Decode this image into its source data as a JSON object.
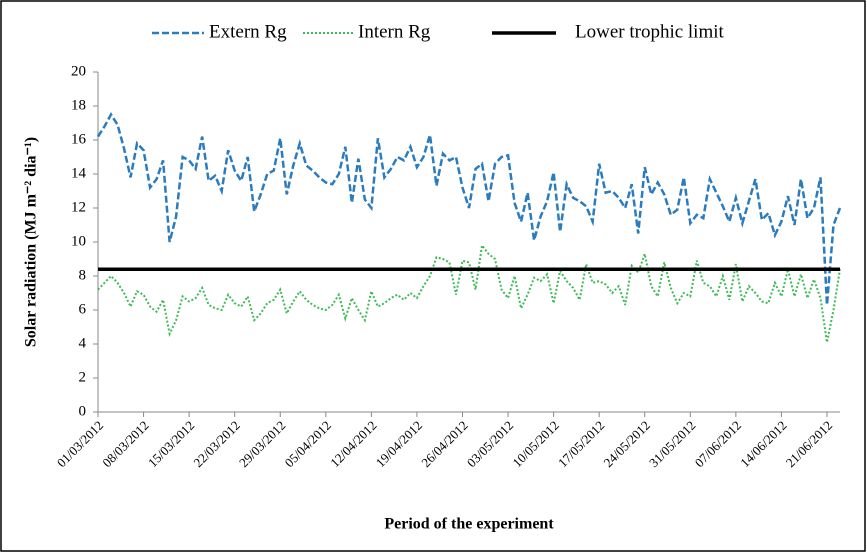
{
  "chart_data": {
    "type": "line",
    "x_label": "Period of the experiment",
    "y_label": "Solar radiation (MJ m⁻² dia⁻¹)",
    "categories": [
      "01/03/2012",
      null,
      null,
      null,
      null,
      null,
      null,
      "08/03/2012",
      null,
      null,
      null,
      null,
      null,
      null,
      "15/03/2012",
      null,
      null,
      null,
      null,
      null,
      null,
      "22/03/2012",
      null,
      null,
      null,
      null,
      null,
      null,
      "29/03/2012",
      null,
      null,
      null,
      null,
      null,
      null,
      "05/04/2012",
      null,
      null,
      null,
      null,
      null,
      null,
      "12/04/2012",
      null,
      null,
      null,
      null,
      null,
      null,
      "19/04/2012",
      null,
      null,
      null,
      null,
      null,
      null,
      "26/04/2012",
      null,
      null,
      null,
      null,
      null,
      null,
      "03/05/2012",
      null,
      null,
      null,
      null,
      null,
      null,
      "10/05/2012",
      null,
      null,
      null,
      null,
      null,
      null,
      "17/05/2012",
      null,
      null,
      null,
      null,
      null,
      null,
      "24/05/2012",
      null,
      null,
      null,
      null,
      null,
      null,
      "31/05/2012",
      null,
      null,
      null,
      null,
      null,
      null,
      "07/06/2012",
      null,
      null,
      null,
      null,
      null,
      null,
      "14/06/2012",
      null,
      null,
      null,
      null,
      null,
      null,
      "21/06/2012",
      null,
      null
    ],
    "series": [
      {
        "name": "Extern Rg",
        "color": "#2b7bbf",
        "style": "dashed",
        "values": [
          16.2,
          16.8,
          17.5,
          16.9,
          15.5,
          13.8,
          15.8,
          15.4,
          13.2,
          13.7,
          14.8,
          10.0,
          11.5,
          15.0,
          14.8,
          14.3,
          16.2,
          13.6,
          13.9,
          13.0,
          15.4,
          14.2,
          13.6,
          15.0,
          11.8,
          12.8,
          14.0,
          14.2,
          16.1,
          12.8,
          14.5,
          15.8,
          14.5,
          14.2,
          13.8,
          13.5,
          13.4,
          14.0,
          15.6,
          12.3,
          14.9,
          12.5,
          12.0,
          16.1,
          13.8,
          14.3,
          15.0,
          14.8,
          15.6,
          14.4,
          15.0,
          16.3,
          13.3,
          15.2,
          14.8,
          15.0,
          13.2,
          12.0,
          14.3,
          14.6,
          12.4,
          14.6,
          15.0,
          15.1,
          12.3,
          11.2,
          12.9,
          10.1,
          11.5,
          12.4,
          14.1,
          10.6,
          13.4,
          12.6,
          12.4,
          12.1,
          11.2,
          14.6,
          12.9,
          13.0,
          12.6,
          12.0,
          13.4,
          10.5,
          14.4,
          12.8,
          13.5,
          12.8,
          11.6,
          11.9,
          13.8,
          11.1,
          11.6,
          11.4,
          13.7,
          12.9,
          12.1,
          11.2,
          12.6,
          11.1,
          12.4,
          13.7,
          11.3,
          11.7,
          10.4,
          11.2,
          12.7,
          11.0,
          13.7,
          11.4,
          12.0,
          13.8,
          6.3,
          11.0,
          12.0
        ]
      },
      {
        "name": "Intern Rg",
        "color": "#3dbb55",
        "style": "dotted",
        "values": [
          7.2,
          7.6,
          8.0,
          7.6,
          7.0,
          6.2,
          7.1,
          6.9,
          6.2,
          5.9,
          6.6,
          4.6,
          5.4,
          6.8,
          6.5,
          6.7,
          7.3,
          6.3,
          6.1,
          6.0,
          6.9,
          6.4,
          6.2,
          6.8,
          5.4,
          5.8,
          6.4,
          6.6,
          7.2,
          5.8,
          6.5,
          7.1,
          6.6,
          6.3,
          6.1,
          6.0,
          6.3,
          6.9,
          5.5,
          6.7,
          6.0,
          5.4,
          7.1,
          6.2,
          6.4,
          6.7,
          6.9,
          6.6,
          7.0,
          6.7,
          7.4,
          8.0,
          9.1,
          9.0,
          8.8,
          6.9,
          8.9,
          8.8,
          7.2,
          9.8,
          9.3,
          9.0,
          7.2,
          6.7,
          8.0,
          6.1,
          6.9,
          7.9,
          7.7,
          8.1,
          6.4,
          8.3,
          7.7,
          7.3,
          6.6,
          8.7,
          7.6,
          7.7,
          7.5,
          7.0,
          7.4,
          6.3,
          8.6,
          8.2,
          9.3,
          7.4,
          6.8,
          8.8,
          7.3,
          6.4,
          7.0,
          6.8,
          8.9,
          7.6,
          7.4,
          6.8,
          8.0,
          6.6,
          8.7,
          6.5,
          7.4,
          7.0,
          6.5,
          6.4,
          7.6,
          6.8,
          8.4,
          6.8,
          8.1,
          6.7,
          7.8,
          6.7,
          4.1,
          6.0,
          8.4
        ]
      },
      {
        "name": "Lower trophic limit",
        "color": "#000000",
        "style": "solid",
        "values": [
          8.4,
          8.4,
          8.4,
          8.4,
          8.4,
          8.4,
          8.4,
          8.4,
          8.4,
          8.4,
          8.4,
          8.4,
          8.4,
          8.4,
          8.4,
          8.4,
          8.4,
          8.4,
          8.4,
          8.4,
          8.4,
          8.4,
          8.4,
          8.4,
          8.4,
          8.4,
          8.4,
          8.4,
          8.4,
          8.4,
          8.4,
          8.4,
          8.4,
          8.4,
          8.4,
          8.4,
          8.4,
          8.4,
          8.4,
          8.4,
          8.4,
          8.4,
          8.4,
          8.4,
          8.4,
          8.4,
          8.4,
          8.4,
          8.4,
          8.4,
          8.4,
          8.4,
          8.4,
          8.4,
          8.4,
          8.4,
          8.4,
          8.4,
          8.4,
          8.4,
          8.4,
          8.4,
          8.4,
          8.4,
          8.4,
          8.4,
          8.4,
          8.4,
          8.4,
          8.4,
          8.4,
          8.4,
          8.4,
          8.4,
          8.4,
          8.4,
          8.4,
          8.4,
          8.4,
          8.4,
          8.4,
          8.4,
          8.4,
          8.4,
          8.4,
          8.4,
          8.4,
          8.4,
          8.4,
          8.4,
          8.4,
          8.4,
          8.4,
          8.4,
          8.4,
          8.4,
          8.4,
          8.4,
          8.4,
          8.4,
          8.4,
          8.4,
          8.4,
          8.4,
          8.4,
          8.4,
          8.4,
          8.4,
          8.4,
          8.4,
          8.4,
          8.4,
          8.4,
          8.4,
          8.4
        ]
      }
    ],
    "ylim": [
      0,
      20
    ],
    "yticks": [
      0,
      2,
      4,
      6,
      8,
      10,
      12,
      14,
      16,
      18,
      20
    ],
    "grid": false,
    "legend": "top"
  }
}
